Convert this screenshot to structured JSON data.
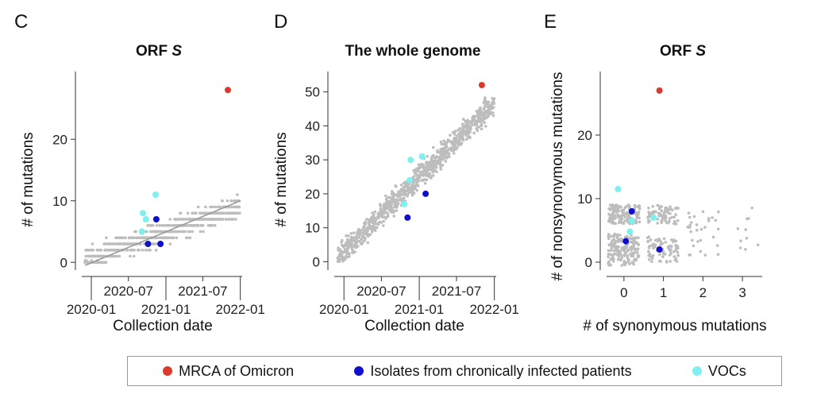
{
  "legend": {
    "items": [
      {
        "label": "MRCA of Omicron",
        "color": "#d93a2b"
      },
      {
        "label": "Isolates from chronically infected patients",
        "color": "#1010cc"
      },
      {
        "label": "VOCs",
        "color": "#7ff0f0"
      }
    ]
  },
  "colors": {
    "background_points": "#bdbdbd",
    "fit_line": "#9a9a9a",
    "axis": "#333333"
  },
  "chart_data": [
    {
      "panel": "C",
      "type": "scatter",
      "title_prefix": "ORF ",
      "title_italic": "S",
      "xlabel": "Collection date",
      "ylabel": "# of mutations",
      "x_axis": "date",
      "xlim": [
        "2019-10-15",
        "2022-01-10"
      ],
      "ylim": [
        -1,
        31
      ],
      "xticks_upper": [
        "2020-07",
        "2021-07"
      ],
      "xticks_lower": [
        "2020-01",
        "2021-01",
        "2022-01"
      ],
      "yticks": [
        0,
        10,
        20
      ],
      "fit_line": {
        "x": [
          "2019-12-01",
          "2022-01-01"
        ],
        "y": [
          -0.5,
          10
        ]
      },
      "background": {
        "x_range": [
          "2019-12-01",
          "2022-01-01"
        ],
        "trend": {
          "start": 0.5,
          "end": 9
        },
        "spread": 2.5,
        "count": 650
      },
      "omicron": [
        {
          "x": "2021-11-01",
          "y": 28
        }
      ],
      "chronic": [
        {
          "x": "2020-10-05",
          "y": 3
        },
        {
          "x": "2020-11-15",
          "y": 7
        },
        {
          "x": "2020-12-05",
          "y": 3
        }
      ],
      "vocs": [
        {
          "x": "2020-09-10",
          "y": 8
        },
        {
          "x": "2020-09-25",
          "y": 7
        },
        {
          "x": "2020-09-05",
          "y": 5
        },
        {
          "x": "2020-11-12",
          "y": 11
        }
      ]
    },
    {
      "panel": "D",
      "type": "scatter",
      "title_prefix": "The whole genome",
      "title_italic": "",
      "xlabel": "Collection date",
      "ylabel": "# of mutations",
      "x_axis": "date",
      "xlim": [
        "2019-10-15",
        "2022-01-10"
      ],
      "ylim": [
        -2,
        56
      ],
      "xticks_upper": [
        "2020-07",
        "2021-07"
      ],
      "xticks_lower": [
        "2020-01",
        "2021-01",
        "2022-01"
      ],
      "yticks": [
        0,
        10,
        20,
        30,
        40,
        50
      ],
      "background": {
        "x_range": [
          "2019-12-01",
          "2022-01-01"
        ],
        "trend": {
          "start": 1,
          "end": 47
        },
        "spread": 5,
        "count": 900
      },
      "omicron": [
        {
          "x": "2021-11-01",
          "y": 52
        }
      ],
      "chronic": [
        {
          "x": "2020-11-05",
          "y": 13
        },
        {
          "x": "2021-02-01",
          "y": 20
        }
      ],
      "vocs": [
        {
          "x": "2020-11-20",
          "y": 30
        },
        {
          "x": "2021-01-15",
          "y": 31
        },
        {
          "x": "2020-11-15",
          "y": 24
        },
        {
          "x": "2020-10-20",
          "y": 17
        }
      ]
    },
    {
      "panel": "E",
      "type": "scatter",
      "title_prefix": "ORF ",
      "title_italic": "S",
      "xlabel": "# of synonymous mutations",
      "ylabel": "# of nonsynonymous mutations",
      "x_axis": "numeric",
      "xlim": [
        -0.6,
        3.5
      ],
      "ylim": [
        -1,
        30
      ],
      "xticks": [
        0,
        1,
        2,
        3
      ],
      "yticks": [
        0,
        10,
        20
      ],
      "background_clusters": [
        {
          "x": 0,
          "y_range": [
            -0.5,
            4.5
          ],
          "count": 180
        },
        {
          "x": 0,
          "y_range": [
            6,
            9
          ],
          "count": 140
        },
        {
          "x": 1,
          "y_range": [
            0,
            4
          ],
          "count": 80
        },
        {
          "x": 1,
          "y_range": [
            6,
            9
          ],
          "count": 70
        },
        {
          "x": 2,
          "y_range": [
            1,
            8
          ],
          "count": 30
        },
        {
          "x": 3,
          "y_range": [
            2,
            9
          ],
          "count": 10
        }
      ],
      "omicron": [
        {
          "x": 0.9,
          "y": 27
        }
      ],
      "chronic": [
        {
          "x": 0.2,
          "y": 8
        },
        {
          "x": 0.05,
          "y": 3.3
        },
        {
          "x": 0.9,
          "y": 2
        }
      ],
      "vocs": [
        {
          "x": -0.15,
          "y": 11.5
        },
        {
          "x": 0.75,
          "y": 7
        },
        {
          "x": 0.15,
          "y": 4.8
        },
        {
          "x": 0.2,
          "y": 6.5
        }
      ]
    }
  ]
}
